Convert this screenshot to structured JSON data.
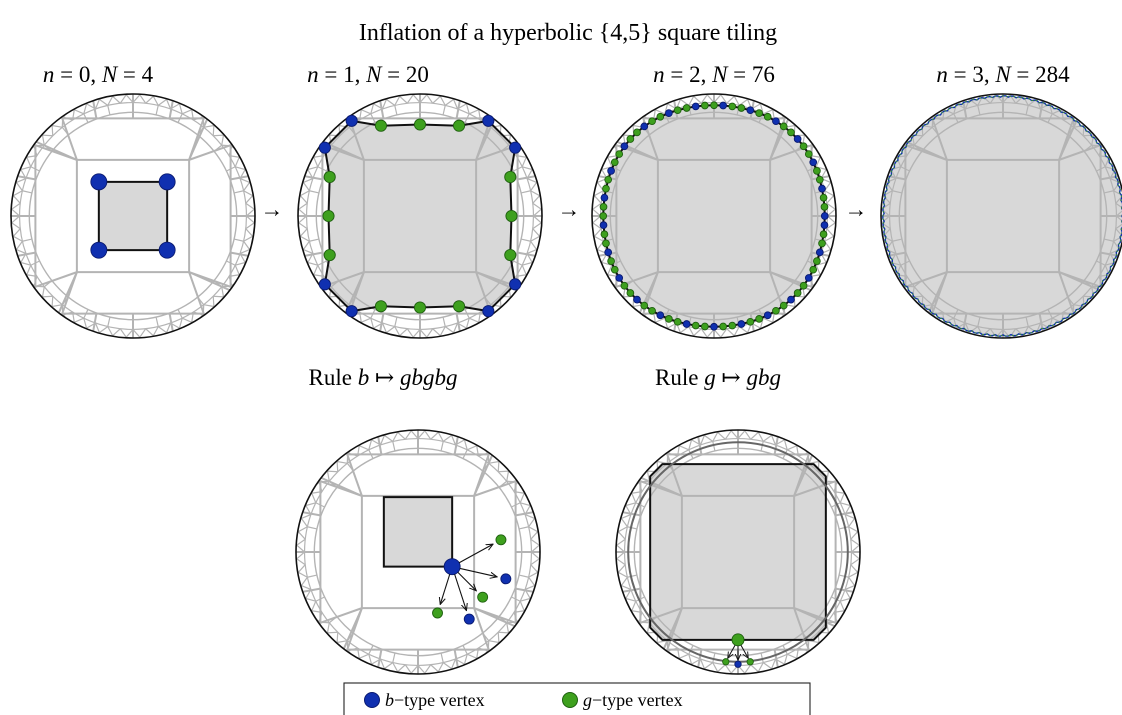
{
  "title": "Inflation of a hyperbolic {4,5} square tiling",
  "panels": [
    {
      "n": "0",
      "N": "4",
      "vertices": 4
    },
    {
      "n": "1",
      "N": "20",
      "vertices": 20
    },
    {
      "n": "2",
      "N": "76",
      "vertices": 76
    },
    {
      "n": "3",
      "N": "284",
      "vertices": 284
    }
  ],
  "arrow_symbol": "→",
  "rules": [
    {
      "prefix": "Rule",
      "lhs": "b",
      "map": "↦",
      "rhs": "gbgbg"
    },
    {
      "prefix": "Rule",
      "lhs": "g",
      "map": "↦",
      "rhs": "gbg"
    }
  ],
  "legend": [
    {
      "symbol": "b",
      "text": "−type vertex",
      "color": "#1030b0",
      "edge": "#0a1a70"
    },
    {
      "symbol": "g",
      "text": "−type vertex",
      "color": "#3ea01e",
      "edge": "#1f6010"
    }
  ],
  "colors": {
    "b_vertex": "#1030b0",
    "g_vertex": "#3ea01e",
    "fill": "#d8d8d8",
    "tiling_line": "#b4b4b4",
    "boundary": "#111111"
  }
}
